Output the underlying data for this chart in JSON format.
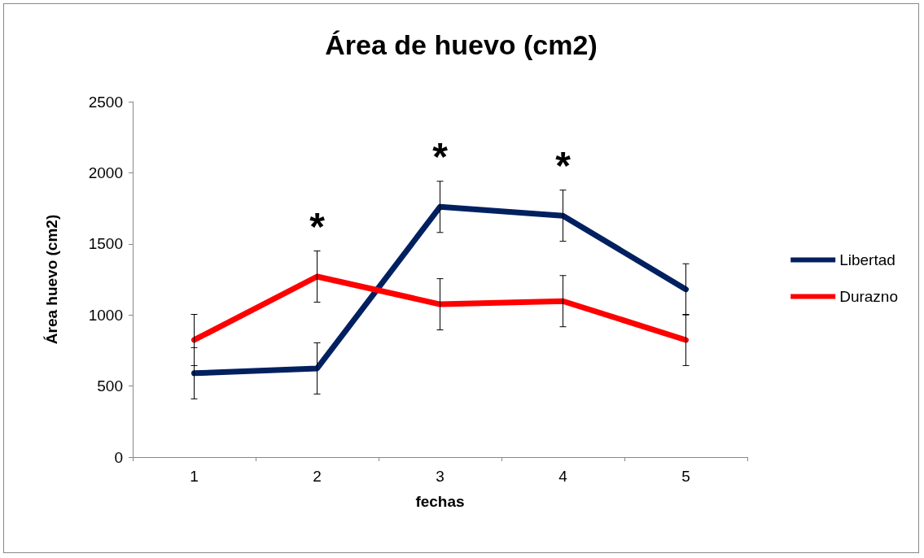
{
  "chart_data": {
    "type": "line",
    "title": "Área de huevo (cm2)",
    "xlabel": "fechas",
    "ylabel": "Área huevo (cm2)",
    "categories": [
      "1",
      "2",
      "3",
      "4",
      "5"
    ],
    "series": [
      {
        "name": "Libertad",
        "color": "#002060",
        "values": [
          590,
          624,
          1760,
          1698,
          1180
        ],
        "errors": [
          180,
          180,
          180,
          180,
          180
        ]
      },
      {
        "name": "Durazno",
        "color": "#ff0000",
        "values": [
          824,
          1270,
          1075,
          1097,
          824
        ],
        "errors": [
          180,
          180,
          180,
          180,
          180
        ]
      }
    ],
    "ylim": [
      0,
      2500
    ],
    "yticks": [
      0,
      500,
      1000,
      1500,
      2000,
      2500
    ],
    "grid": false,
    "legend": "right",
    "marker": "none",
    "line_style": "solid",
    "annotations": [
      "*",
      "*",
      "*"
    ]
  }
}
